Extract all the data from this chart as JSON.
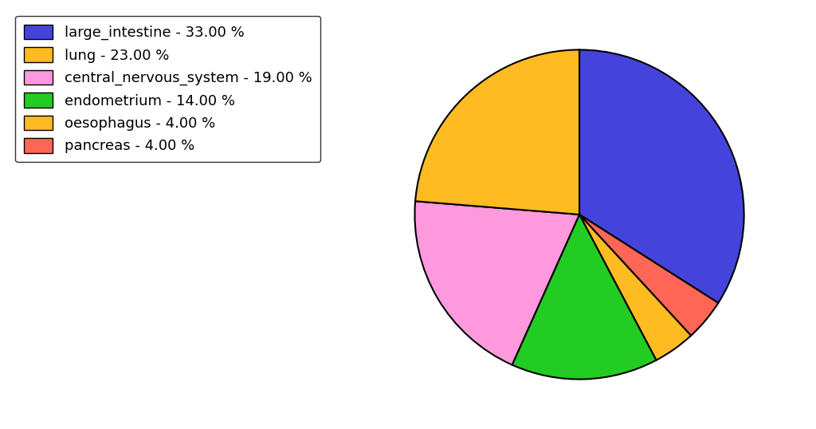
{
  "pie_labels": [
    "large_intestine",
    "pancreas",
    "oesophagus",
    "endometrium",
    "central_nervous_system",
    "lung"
  ],
  "pie_values": [
    33,
    4,
    4,
    14,
    19,
    23
  ],
  "pie_colors": [
    "#4444dd",
    "#ff6655",
    "#ffbb22",
    "#22cc22",
    "#ff99dd",
    "#ffbb22"
  ],
  "legend_labels": [
    "large_intestine - 33.00 %",
    "lung - 23.00 %",
    "central_nervous_system - 19.00 %",
    "endometrium - 14.00 %",
    "oesophagus - 4.00 %",
    "pancreas - 4.00 %"
  ],
  "legend_colors": [
    "#4444dd",
    "#ffbb22",
    "#ff99dd",
    "#22cc22",
    "#ffbb22",
    "#ff6655"
  ],
  "startangle": 90,
  "counterclock": false,
  "figsize": [
    10.24,
    5.38
  ],
  "dpi": 100
}
